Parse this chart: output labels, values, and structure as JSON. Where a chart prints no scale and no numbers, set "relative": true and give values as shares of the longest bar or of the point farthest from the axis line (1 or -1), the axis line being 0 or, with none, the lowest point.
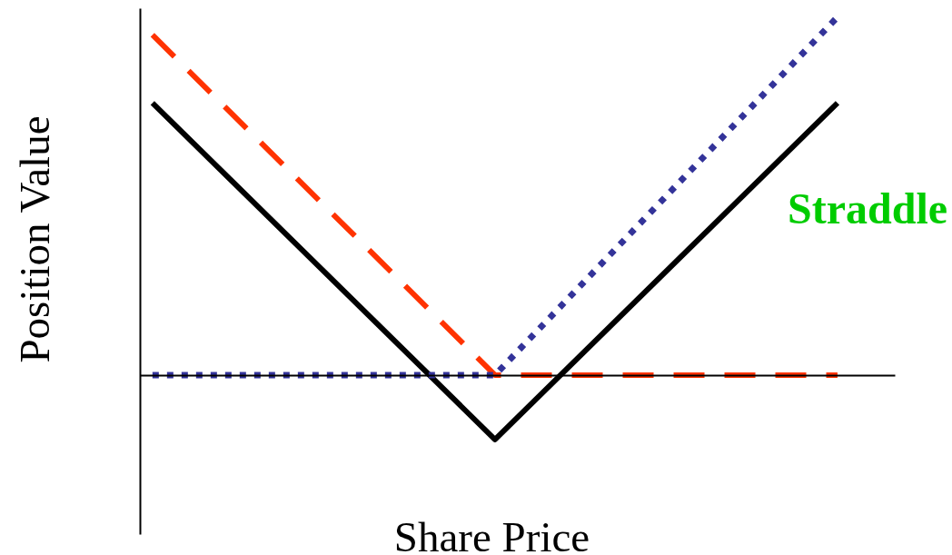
{
  "chart_data": {
    "type": "line",
    "relative": true,
    "xlabel": "Share Price",
    "ylabel": "Position Value",
    "annotations": [
      "Straddle"
    ],
    "categories": [
      null,
      null,
      null
    ],
    "series": [
      {
        "color": "#000000",
        "line_style": "solid",
        "values": [
          0.76,
          -0.18,
          0.76
        ]
      },
      {
        "color": "#ff3300",
        "line_style": "dashed",
        "values": [
          0.95,
          0,
          0
        ]
      },
      {
        "color": "#333399",
        "line_style": "dotted",
        "values": [
          0,
          0,
          1
        ]
      }
    ]
  }
}
